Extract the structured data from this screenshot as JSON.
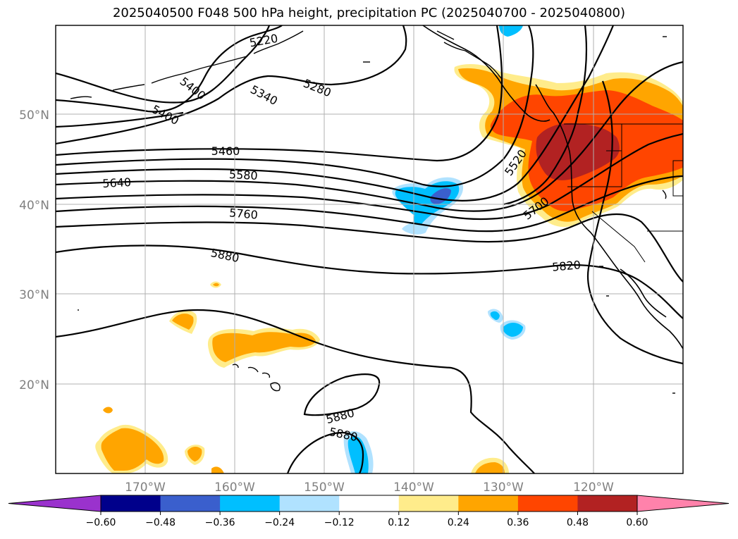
{
  "title": "2025040500 F048 500 hPa height, precipitation PC (2025040700 - 2025040800)",
  "lat_labels": [
    "50°N",
    "40°N",
    "30°N",
    "20°N"
  ],
  "lon_labels": [
    "170°W",
    "160°W",
    "150°W",
    "140°W",
    "130°W",
    "120°W"
  ],
  "contour_labels": [
    "5220",
    "5280",
    "5340",
    "5400",
    "5400",
    "5460",
    "5580",
    "5640",
    "5760",
    "5880",
    "5520",
    "5700",
    "5820",
    "5880",
    "5880"
  ],
  "colorbar": {
    "ticks": [
      "−0.60",
      "−0.48",
      "−0.36",
      "−0.24",
      "−0.12",
      "0.12",
      "0.24",
      "0.36",
      "0.48",
      "0.60"
    ],
    "colors": [
      "#9a32cd",
      "#00008b",
      "#3a5fcd",
      "#00bfff",
      "#b0e2ff",
      "#ffffff",
      "#ffec8b",
      "#ffa500",
      "#ff4500",
      "#b22222",
      "#ff82ab"
    ]
  },
  "colors": {
    "light_yellow": "#ffec8b",
    "orange": "#ffa500",
    "red_orange": "#ff4500",
    "dark_red": "#b22222",
    "deep_sky_blue": "#00bfff",
    "light_blue": "#b0e2ff",
    "royal_blue": "#3a5fcd"
  }
}
